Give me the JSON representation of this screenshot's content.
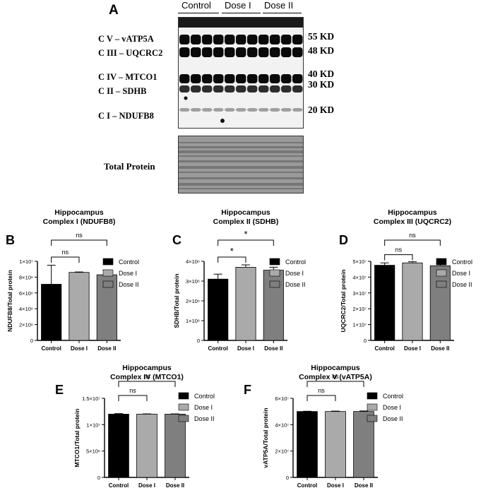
{
  "panel_a": {
    "letter": "A",
    "groups": [
      "Control",
      "Dose I",
      "Dose II"
    ],
    "bands": [
      {
        "name": "C V – vATP5A",
        "kd": "55 KD"
      },
      {
        "name": "C III – UQCRC2",
        "kd": "48 KD"
      },
      {
        "name": "C IV – MTCO1",
        "kd": "40 KD"
      },
      {
        "name": "C II – SDHB",
        "kd": "30 KD"
      },
      {
        "name": "C I – NDUFB8",
        "kd": "20 KD"
      }
    ],
    "total_label": "Total Protein",
    "colors": {
      "band": "#0a0a0a",
      "membrane": "#f2f2f2",
      "total_bg": "#9a9a9a"
    }
  },
  "legend": {
    "labels": [
      "Control",
      "Dose I",
      "Dose II"
    ]
  },
  "colors": {
    "control": "#000000",
    "dose1": "#aaaaaa",
    "dose2": "#7f7f7f"
  },
  "chart_data": [
    {
      "panel": "B",
      "type": "bar",
      "title": [
        "Hippocampus",
        "Complex I (NDUFB8)"
      ],
      "ylabel": "NDUFB8/Total protein",
      "categories": [
        "Control",
        "Dose I",
        "Dose II"
      ],
      "values": [
        7100000.0,
        8600000.0,
        8300000.0
      ],
      "errors": [
        2400000.0,
        50000.0,
        600000.0
      ],
      "ylim": [
        0,
        10000000.0
      ],
      "yticks": [
        0,
        2000000.0,
        4000000.0,
        6000000.0,
        8000000.0,
        10000000.0
      ],
      "ytick_labels": [
        "0",
        "2×10⁶",
        "4×10⁶",
        "6×10⁶",
        "8×10⁶",
        "1×10⁷"
      ],
      "significance": [
        {
          "from": 0,
          "to": 1,
          "label": "ns"
        },
        {
          "from": 0,
          "to": 2,
          "label": "ns"
        }
      ]
    },
    {
      "panel": "C",
      "type": "bar",
      "title": [
        "Hippocampus",
        "Complex II (SDHB)"
      ],
      "ylabel": "SDHB/Total protein",
      "categories": [
        "Control",
        "Dose I",
        "Dose II"
      ],
      "values": [
        3100000.0,
        3700000.0,
        3550000.0
      ],
      "errors": [
        250000.0,
        120000.0,
        150000.0
      ],
      "ylim": [
        0,
        4000000.0
      ],
      "yticks": [
        0,
        1000000.0,
        2000000.0,
        3000000.0,
        4000000.0
      ],
      "ytick_labels": [
        "0",
        "1×10⁶",
        "2×10⁶",
        "3×10⁶",
        "4×10⁶"
      ],
      "significance": [
        {
          "from": 0,
          "to": 1,
          "label": "*"
        },
        {
          "from": 0,
          "to": 2,
          "label": "*"
        }
      ]
    },
    {
      "panel": "D",
      "type": "bar",
      "title": [
        "Hippocampus",
        "Complex III (UQCRC2)"
      ],
      "ylabel": "UQCRC2/Total protein",
      "categories": [
        "Control",
        "Dose I",
        "Dose II"
      ],
      "values": [
        47500000.0,
        49000000.0,
        47200000.0
      ],
      "errors": [
        1500000.0,
        700000.0,
        1200000.0
      ],
      "ylim": [
        0,
        50000000.0
      ],
      "yticks": [
        0,
        10000000.0,
        20000000.0,
        30000000.0,
        40000000.0,
        50000000.0
      ],
      "ytick_labels": [
        "0",
        "1×10⁷",
        "2×10⁷",
        "3×10⁷",
        "4×10⁷",
        "5×10⁷"
      ],
      "significance": [
        {
          "from": 0,
          "to": 1,
          "label": "ns"
        },
        {
          "from": 0,
          "to": 2,
          "label": "ns"
        }
      ]
    },
    {
      "panel": "E",
      "type": "bar",
      "title": [
        "Hippocampus",
        "Complex IV (MTCO1)"
      ],
      "ylabel": "MTCO1/Total protein",
      "categories": [
        "Control",
        "Dose I",
        "Dose II"
      ],
      "values": [
        12000000.0,
        12000000.0,
        12000000.0
      ],
      "errors": [
        100000.0,
        50000.0,
        50000.0
      ],
      "ylim": [
        0,
        15000000.0
      ],
      "yticks": [
        0,
        5000000.0,
        10000000.0,
        15000000.0
      ],
      "ytick_labels": [
        "0",
        "5×10⁶",
        "1×10⁷",
        "1.5×10⁷"
      ],
      "significance": [
        {
          "from": 0,
          "to": 1,
          "label": "ns"
        },
        {
          "from": 0,
          "to": 2,
          "label": "ns"
        }
      ]
    },
    {
      "panel": "F",
      "type": "bar",
      "title": [
        "Hippocampus",
        "Complex V (vATP5A)"
      ],
      "ylabel": "vATP5A/Total protein",
      "categories": [
        "Control",
        "Dose I",
        "Dose II"
      ],
      "values": [
        50000000.0,
        50000000.0,
        50000000.0
      ],
      "errors": [
        200000.0,
        300000.0,
        400000.0
      ],
      "ylim": [
        0,
        60000000.0
      ],
      "yticks": [
        0,
        20000000.0,
        40000000.0,
        60000000.0
      ],
      "ytick_labels": [
        "0",
        "2×10⁷",
        "4×10⁷",
        "6×10⁷"
      ],
      "significance": [
        {
          "from": 0,
          "to": 1,
          "label": "ns"
        },
        {
          "from": 0,
          "to": 2,
          "label": "ns"
        }
      ]
    }
  ]
}
